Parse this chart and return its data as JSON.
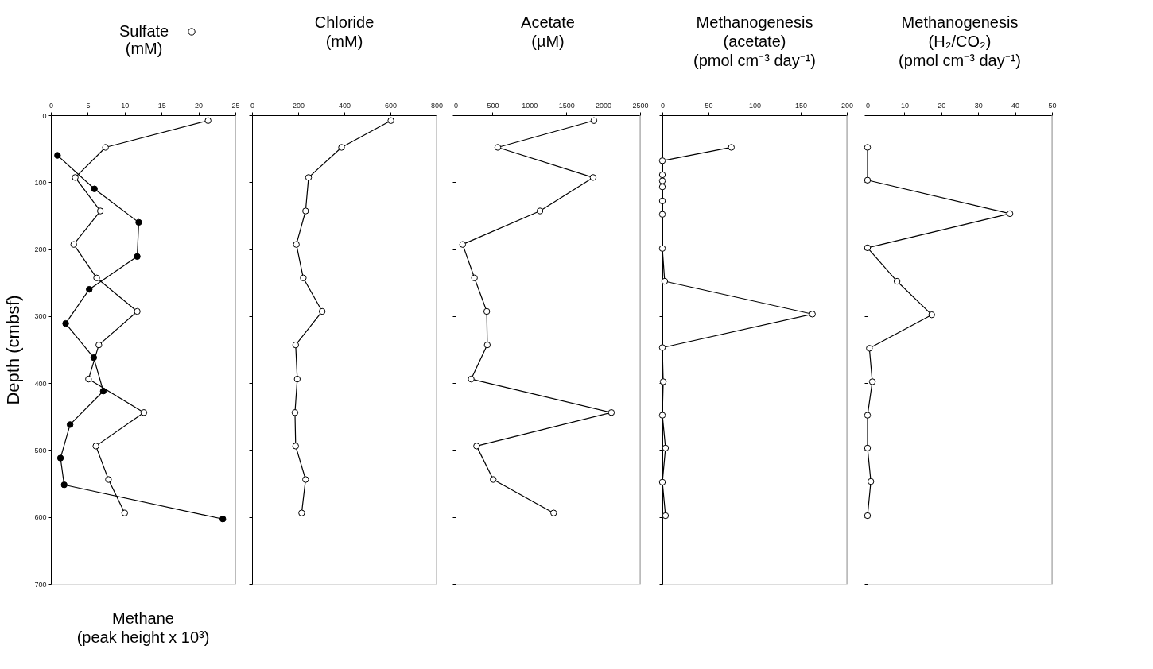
{
  "chart_data": [
    {
      "type": "line",
      "xlabel": "Methane\n(peak height x 10³)",
      "ylabel": "Depth (cmbsf)",
      "xlim": [
        0,
        25
      ],
      "xticks": [
        0,
        5,
        10,
        15,
        20,
        25
      ],
      "ylim": [
        700,
        0
      ],
      "yticks": [
        0,
        100,
        200,
        300,
        400,
        500,
        600,
        700
      ],
      "marker": "circle",
      "legend": "top",
      "grid": false,
      "series": [
        {
          "name": "Sulfate\n(mM)",
          "color": "#ffffff",
          "x": [
            21.3,
            7.4,
            3.3,
            6.7,
            3.1,
            6.2,
            11.7,
            6.5,
            5.1,
            12.6,
            6.1,
            7.8,
            10.0
          ],
          "values": [
            8,
            48,
            93,
            143,
            193,
            243,
            293,
            343,
            394,
            444,
            494,
            544,
            594
          ]
        },
        {
          "color": "#000000",
          "x": [
            0.9,
            5.9,
            11.9,
            11.7,
            5.2,
            2.0,
            5.8,
            7.1,
            2.6,
            1.3,
            1.8,
            23.3
          ],
          "values": [
            60,
            110,
            160,
            211,
            260,
            311,
            362,
            412,
            462,
            512,
            552,
            603
          ]
        }
      ]
    },
    {
      "type": "line",
      "title": "Chloride\n(mM)",
      "xlim": [
        0,
        800
      ],
      "xticks": [
        0,
        200,
        400,
        600,
        800
      ],
      "ylim": [
        700,
        0
      ],
      "yticks": [
        0,
        100,
        200,
        300,
        400,
        500,
        600,
        700
      ],
      "tick_labels": "x",
      "marker": "circle",
      "grid": false,
      "series": [
        {
          "color": "#ffffff",
          "x": [
            602,
            388,
            245,
            232,
            192,
            222,
            304,
            189,
            196,
            186,
            189,
            232,
            215
          ],
          "values": [
            8,
            48,
            93,
            143,
            193,
            243,
            293,
            343,
            394,
            444,
            494,
            544,
            594
          ]
        }
      ]
    },
    {
      "type": "line",
      "title": "Acetate\n(µM)",
      "xlim": [
        0,
        2500
      ],
      "xticks": [
        0,
        500,
        1000,
        1500,
        2000,
        2500
      ],
      "ylim": [
        700,
        0
      ],
      "yticks": [
        0,
        100,
        200,
        300,
        400,
        500,
        600,
        700
      ],
      "tick_labels": "x",
      "marker": "circle",
      "grid": false,
      "series": [
        {
          "color": "#ffffff",
          "x": [
            1874,
            571,
            1863,
            1143,
            95,
            255,
            422,
            429,
            211,
            2111,
            284,
            509,
            1328
          ],
          "values": [
            8,
            48,
            93,
            143,
            193,
            243,
            293,
            343,
            394,
            444,
            494,
            544,
            594
          ]
        }
      ]
    },
    {
      "type": "line",
      "title": "Methanogenesis\n(acetate)\n(pmol cm⁻³ day⁻¹)",
      "xlim": [
        0,
        200
      ],
      "xticks": [
        0,
        50,
        100,
        150,
        200
      ],
      "ylim": [
        700,
        0
      ],
      "yticks": [
        0,
        100,
        200,
        300,
        400,
        500,
        600,
        700
      ],
      "tick_labels": "x",
      "marker": "circle",
      "grid": false,
      "series": [
        {
          "color": "#ffffff",
          "x": [
            74.8,
            0,
            0,
            0,
            0,
            0,
            0,
            0,
            2.5,
            162.7,
            0,
            0.9,
            0,
            3.4,
            0,
            3.4
          ],
          "values": [
            48,
            68,
            89,
            98,
            107,
            128,
            148,
            199,
            248,
            297,
            347,
            398,
            448,
            497,
            548,
            598
          ]
        }
      ]
    },
    {
      "type": "line",
      "title": "Methanogenesis\n(H₂/CO₂)\n(pmol cm⁻³ day⁻¹)",
      "xlim": [
        0,
        50
      ],
      "xticks": [
        0,
        10,
        20,
        30,
        40,
        50
      ],
      "ylim": [
        700,
        0
      ],
      "yticks": [
        0,
        100,
        200,
        300,
        400,
        500,
        600,
        700
      ],
      "tick_labels": "x",
      "marker": "circle",
      "grid": false,
      "series": [
        {
          "color": "#ffffff",
          "x": [
            0,
            0,
            38.6,
            0,
            8.0,
            17.4,
            0.5,
            1.3,
            0,
            0,
            0.9,
            0
          ],
          "values": [
            48,
            97,
            147,
            198,
            248,
            298,
            348,
            398,
            448,
            497,
            547,
            598
          ]
        }
      ]
    }
  ]
}
